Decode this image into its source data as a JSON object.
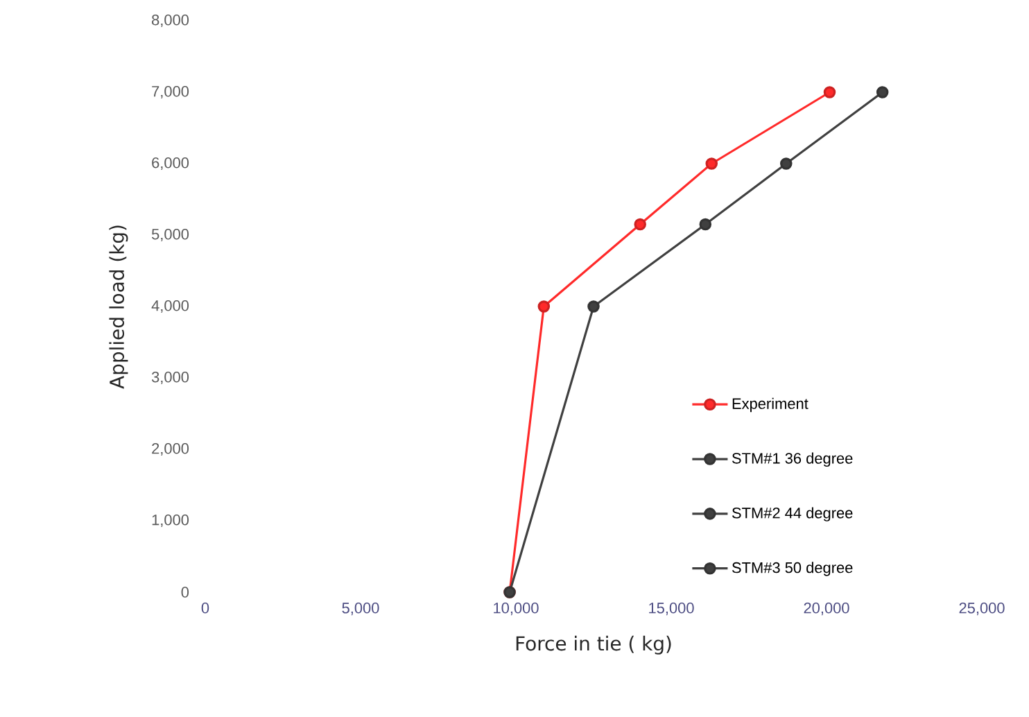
{
  "chart_data": {
    "type": "line",
    "xlabel": "Force in tie ( kg)",
    "ylabel": "Applied load (kg)",
    "xlim": [
      0,
      25000
    ],
    "xticks": [
      {
        "value": 0,
        "label": "0"
      },
      {
        "value": 5000,
        "label": "5,000"
      },
      {
        "value": 10000,
        "label": "10,000"
      },
      {
        "value": 15000,
        "label": "15,000"
      },
      {
        "value": 20000,
        "label": "20,000"
      },
      {
        "value": 25000,
        "label": "25,000"
      }
    ],
    "ylim": [
      0,
      8000
    ],
    "yticks": [
      {
        "value": 0,
        "label": "0"
      },
      {
        "value": 1000,
        "label": "1,000"
      },
      {
        "value": 2000,
        "label": "2,000"
      },
      {
        "value": 3000,
        "label": "3,000"
      },
      {
        "value": 4000,
        "label": "4,000"
      },
      {
        "value": 5000,
        "label": "5,000"
      },
      {
        "value": 6000,
        "label": "6,000"
      },
      {
        "value": 7000,
        "label": "7,000"
      },
      {
        "value": 8000,
        "label": "8,000"
      }
    ],
    "grid": false,
    "legend": "bottom right",
    "marker": "circle",
    "line_style": "solid",
    "series": [
      {
        "name": "Experiment",
        "color": "#ff2a2a",
        "x": [
          9800,
          10900,
          14000,
          16300,
          20100
        ],
        "values": [
          0,
          4000,
          5150,
          6000,
          7000
        ]
      },
      {
        "name": "STM#1 36 degree",
        "color": "#404040",
        "x": [
          9800,
          12500,
          16100,
          18700,
          21800
        ],
        "values": [
          0,
          4000,
          5150,
          6000,
          7000
        ]
      },
      {
        "name": "STM#2 44 degree",
        "color": "#404040",
        "values": [
          null,
          null,
          null,
          null,
          null
        ]
      },
      {
        "name": "STM#3 50 degree",
        "color": "#404040",
        "values": [
          null,
          null,
          null,
          null,
          null
        ]
      }
    ]
  }
}
